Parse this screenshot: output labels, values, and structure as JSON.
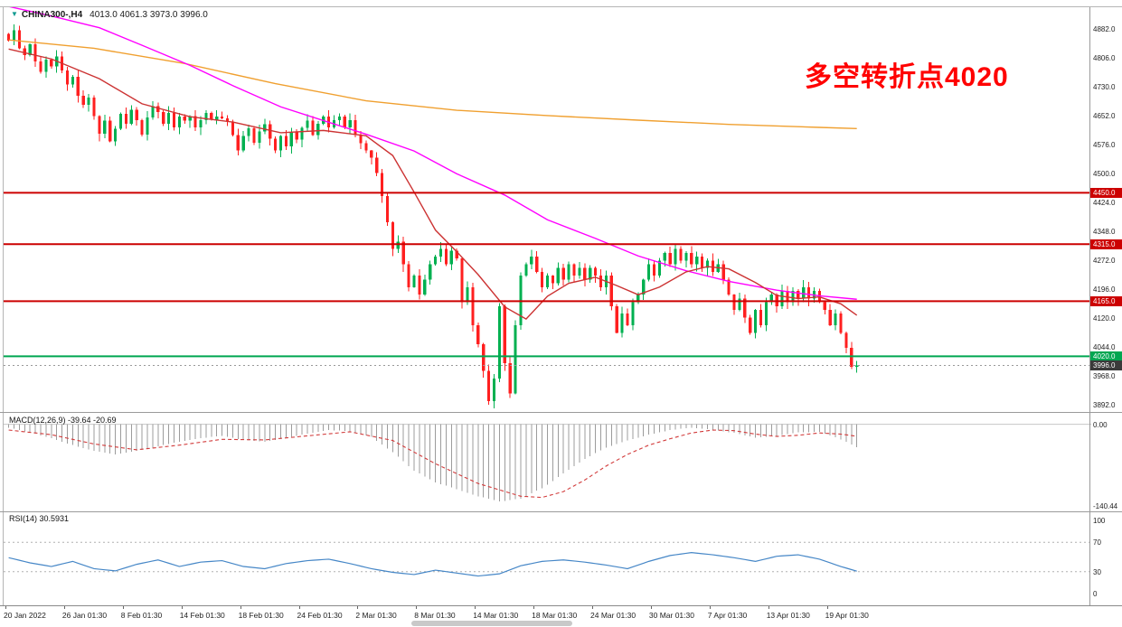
{
  "window": {
    "symbol_tf": "CHINA300-,H4",
    "ohlc_text": "4013.0 4061.3 3973.0 3996.0"
  },
  "annotation": {
    "text": "多空转折点4020",
    "color": "#ff0000"
  },
  "panels": {
    "macd_label": "MACD(12,26,9) -39.64 -20.69",
    "rsi_label": "RSI(14) 30.5931"
  },
  "chart_data": [
    {
      "type": "candlestick",
      "symbol": "CHINA300-",
      "timeframe": "H4",
      "ohlc_current": {
        "open": 4013.0,
        "high": 4061.3,
        "low": 3973.0,
        "close": 3996.0
      },
      "ylim": [
        3876,
        4938
      ],
      "y_ticks": [
        "4882.0",
        "4806.0",
        "4730.0",
        "4652.0",
        "4576.0",
        "4500.0",
        "4424.0",
        "4348.0",
        "4272.0",
        "4196.0",
        "4120.0",
        "4044.0",
        "3968.0",
        "3892.0"
      ],
      "x_labels": [
        "20 Jan 2022",
        "26 Jan 01:30",
        "8 Feb 01:30",
        "14 Feb 01:30",
        "18 Feb 01:30",
        "24 Feb 01:30",
        "2 Mar 01:30",
        "8 Mar 01:30",
        "14 Mar 01:30",
        "18 Mar 01:30",
        "24 Mar 01:30",
        "30 Mar 01:30",
        "7 Apr 01:30",
        "13 Apr 01:30",
        "19 Apr 01:30"
      ],
      "closes": [
        4850,
        4878,
        4830,
        4812,
        4840,
        4795,
        4768,
        4800,
        4782,
        4808,
        4772,
        4735,
        4755,
        4705,
        4682,
        4700,
        4652,
        4605,
        4640,
        4585,
        4618,
        4658,
        4632,
        4668,
        4641,
        4603,
        4648,
        4678,
        4662,
        4632,
        4660,
        4622,
        4650,
        4640,
        4652,
        4622,
        4641,
        4660,
        4642,
        4651,
        4646,
        4638,
        4602,
        4562,
        4600,
        4620,
        4582,
        4611,
        4630,
        4592,
        4562,
        4600,
        4572,
        4610,
        4590,
        4621,
        4640,
        4602,
        4631,
        4650,
        4622,
        4641,
        4650,
        4622,
        4641,
        4602,
        4581,
        4561,
        4542,
        4502,
        4442,
        4372,
        4302,
        4322,
        4262,
        4202,
        4232,
        4182,
        4222,
        4262,
        4282,
        4302,
        4262,
        4298,
        4278,
        4162,
        4202,
        4102,
        4052,
        3982,
        3902,
        3962,
        4152,
        4002,
        3922,
        4102,
        4232,
        4262,
        4282,
        4242,
        4202,
        4232,
        4212,
        4252,
        4222,
        4262,
        4232,
        4252,
        4222,
        4252,
        4232,
        4202,
        4232,
        4152,
        4082,
        4132,
        4102,
        4162,
        4182,
        4222,
        4262,
        4232,
        4272,
        4292,
        4262,
        4302,
        4272,
        4292,
        4262,
        4282,
        4252,
        4272,
        4242,
        4262,
        4222,
        4182,
        4142,
        4172,
        4122,
        4082,
        4142,
        4102,
        4162,
        4182,
        4152,
        4192,
        4162,
        4192,
        4172,
        4202,
        4172,
        4192,
        4162,
        4142,
        4102,
        4132,
        4082,
        4042,
        3992,
        3996
      ],
      "ma_lines": [
        {
          "name": "slow-orange",
          "color": "#f0a030",
          "points": [
            [
              0,
              4852
            ],
            [
              16,
              4830
            ],
            [
              33,
              4790
            ],
            [
              50,
              4737
            ],
            [
              67,
              4692
            ],
            [
              84,
              4667
            ],
            [
              101,
              4653
            ],
            [
              118,
              4641
            ],
            [
              135,
              4630
            ],
            [
              152,
              4622
            ],
            [
              159,
              4619
            ]
          ]
        },
        {
          "name": "mid-magenta",
          "color": "#ff00ff",
          "points": [
            [
              0,
              4940
            ],
            [
              8,
              4915
            ],
            [
              17,
              4884
            ],
            [
              25,
              4838
            ],
            [
              34,
              4785
            ],
            [
              42,
              4732
            ],
            [
              51,
              4676
            ],
            [
              59,
              4640
            ],
            [
              67,
              4604
            ],
            [
              76,
              4560
            ],
            [
              84,
              4500
            ],
            [
              93,
              4444
            ],
            [
              101,
              4379
            ],
            [
              110,
              4330
            ],
            [
              118,
              4284
            ],
            [
              127,
              4245
            ],
            [
              135,
              4217
            ],
            [
              144,
              4194
            ],
            [
              152,
              4179
            ],
            [
              159,
              4170
            ]
          ]
        },
        {
          "name": "fast-red",
          "color": "#cc3333",
          "points": [
            [
              0,
              4828
            ],
            [
              8,
              4802
            ],
            [
              17,
              4750
            ],
            [
              25,
              4684
            ],
            [
              34,
              4650
            ],
            [
              42,
              4636
            ],
            [
              51,
              4608
            ],
            [
              59,
              4614
            ],
            [
              67,
              4600
            ],
            [
              72,
              4548
            ],
            [
              76,
              4452
            ],
            [
              80,
              4352
            ],
            [
              84,
              4295
            ],
            [
              88,
              4235
            ],
            [
              93,
              4150
            ],
            [
              97,
              4118
            ],
            [
              101,
              4178
            ],
            [
              105,
              4212
            ],
            [
              110,
              4228
            ],
            [
              114,
              4206
            ],
            [
              118,
              4182
            ],
            [
              122,
              4202
            ],
            [
              127,
              4242
            ],
            [
              131,
              4256
            ],
            [
              135,
              4250
            ],
            [
              140,
              4214
            ],
            [
              144,
              4180
            ],
            [
              148,
              4172
            ],
            [
              152,
              4176
            ],
            [
              156,
              4158
            ],
            [
              159,
              4128
            ]
          ]
        }
      ],
      "hlines": [
        {
          "price": 4450.0,
          "label": "4450.0",
          "color": "#cc0000"
        },
        {
          "price": 4315.0,
          "label": "4315.0",
          "color": "#cc0000"
        },
        {
          "price": 4165.0,
          "label": "4165.0",
          "color": "#cc0000"
        },
        {
          "price": 4020.0,
          "label": "4020.0",
          "color": "#00a651"
        }
      ],
      "current_price": {
        "value": 3996.0,
        "label": "3996.0",
        "color": "#3a3a3a"
      },
      "colors": {
        "up": "#00b050",
        "down": "#ff1f1f"
      }
    },
    {
      "type": "bar",
      "name": "MACD",
      "params": "12,26,9",
      "current_values": [
        -39.64,
        -20.69
      ],
      "ylim": [
        18,
        -150
      ],
      "y_ticks": [
        {
          "v": 0,
          "label": "0.00"
        },
        {
          "v": -140.44,
          "label": "-140.44"
        }
      ],
      "histogram": [
        [
          0,
          -6
        ],
        [
          4,
          -14
        ],
        [
          8,
          -24
        ],
        [
          12,
          -36
        ],
        [
          16,
          -46
        ],
        [
          20,
          -52
        ],
        [
          24,
          -46
        ],
        [
          28,
          -38
        ],
        [
          32,
          -30
        ],
        [
          36,
          -24
        ],
        [
          40,
          -20
        ],
        [
          44,
          -27
        ],
        [
          48,
          -30
        ],
        [
          52,
          -24
        ],
        [
          56,
          -16
        ],
        [
          60,
          -10
        ],
        [
          64,
          -12
        ],
        [
          68,
          -22
        ],
        [
          72,
          -48
        ],
        [
          76,
          -80
        ],
        [
          80,
          -100
        ],
        [
          84,
          -112
        ],
        [
          88,
          -124
        ],
        [
          92,
          -133
        ],
        [
          96,
          -128
        ],
        [
          100,
          -110
        ],
        [
          104,
          -85
        ],
        [
          108,
          -60
        ],
        [
          112,
          -40
        ],
        [
          116,
          -28
        ],
        [
          120,
          -18
        ],
        [
          124,
          -10
        ],
        [
          128,
          -6
        ],
        [
          132,
          -9
        ],
        [
          136,
          -15
        ],
        [
          140,
          -23
        ],
        [
          144,
          -20
        ],
        [
          148,
          -14
        ],
        [
          152,
          -13
        ],
        [
          156,
          -26
        ],
        [
          159,
          -39.64
        ]
      ],
      "signal": [
        [
          0,
          -10
        ],
        [
          8,
          -18
        ],
        [
          16,
          -34
        ],
        [
          24,
          -44
        ],
        [
          32,
          -36
        ],
        [
          40,
          -26
        ],
        [
          48,
          -27
        ],
        [
          56,
          -20
        ],
        [
          64,
          -13
        ],
        [
          72,
          -28
        ],
        [
          80,
          -68
        ],
        [
          88,
          -102
        ],
        [
          96,
          -124
        ],
        [
          100,
          -126
        ],
        [
          104,
          -116
        ],
        [
          108,
          -96
        ],
        [
          112,
          -72
        ],
        [
          116,
          -52
        ],
        [
          120,
          -36
        ],
        [
          124,
          -25
        ],
        [
          128,
          -15
        ],
        [
          132,
          -10
        ],
        [
          136,
          -11
        ],
        [
          140,
          -17
        ],
        [
          144,
          -21
        ],
        [
          148,
          -19
        ],
        [
          152,
          -15
        ],
        [
          156,
          -17
        ],
        [
          159,
          -20.69
        ]
      ],
      "colors": {
        "histogram": "#9c9c9c",
        "signal": "#d23b3b",
        "zero_line": "#c6c6c6"
      }
    },
    {
      "type": "line",
      "name": "RSI",
      "params": "14",
      "current": 30.5931,
      "ylim": [
        0,
        100
      ],
      "levels": [
        70,
        30
      ],
      "y_ticks": [
        100,
        70,
        30,
        0
      ],
      "samples": [
        [
          0,
          49
        ],
        [
          4,
          42
        ],
        [
          8,
          37
        ],
        [
          12,
          44
        ],
        [
          16,
          34
        ],
        [
          20,
          31
        ],
        [
          24,
          40
        ],
        [
          28,
          46
        ],
        [
          32,
          37
        ],
        [
          36,
          43
        ],
        [
          40,
          45
        ],
        [
          44,
          37
        ],
        [
          48,
          34
        ],
        [
          52,
          41
        ],
        [
          56,
          45
        ],
        [
          60,
          47
        ],
        [
          64,
          41
        ],
        [
          68,
          34
        ],
        [
          72,
          29
        ],
        [
          76,
          26
        ],
        [
          80,
          32
        ],
        [
          84,
          28
        ],
        [
          88,
          24
        ],
        [
          92,
          27
        ],
        [
          96,
          38
        ],
        [
          100,
          44
        ],
        [
          104,
          46
        ],
        [
          108,
          43
        ],
        [
          112,
          39
        ],
        [
          116,
          34
        ],
        [
          120,
          44
        ],
        [
          124,
          52
        ],
        [
          128,
          56
        ],
        [
          132,
          53
        ],
        [
          136,
          49
        ],
        [
          140,
          44
        ],
        [
          144,
          51
        ],
        [
          148,
          53
        ],
        [
          152,
          47
        ],
        [
          156,
          37
        ],
        [
          159,
          30.59
        ]
      ],
      "color": "#4687c7"
    }
  ]
}
